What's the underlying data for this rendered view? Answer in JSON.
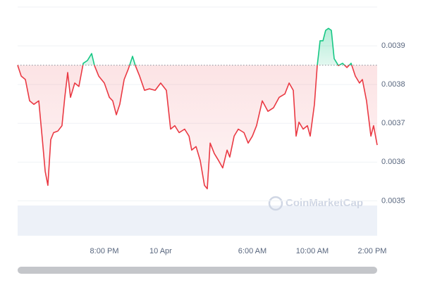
{
  "chart_data": {
    "type": "line",
    "watermark": "CoinMarketCap",
    "x": [
      0,
      0.24,
      0.52,
      0.8,
      1.08,
      1.41,
      1.65,
      1.84,
      2.02,
      2.21,
      2.4,
      2.68,
      2.96,
      3.15,
      3.34,
      3.53,
      3.81,
      4.09,
      4.38,
      4.66,
      4.94,
      5.13,
      5.41,
      5.79,
      6.12,
      6.35,
      6.59,
      6.82,
      7.11,
      7.39,
      7.67,
      7.86,
      8.14,
      8.47,
      8.8,
      9.18,
      9.55,
      9.93,
      10.21,
      10.49,
      10.78,
      11.15,
      11.44,
      11.62,
      11.91,
      12.19,
      12.47,
      12.66,
      12.85,
      13.13,
      13.41,
      13.69,
      13.98,
      14.16,
      14.45,
      14.73,
      15.11,
      15.39,
      15.67,
      15.95,
      16.33,
      16.71,
      17.08,
      17.46,
      17.84,
      18.12,
      18.4,
      18.59,
      18.78,
      19.06,
      19.34,
      19.53,
      19.81,
      20,
      20.19,
      20.38,
      20.56,
      20.75,
      20.94,
      21.13,
      21.41,
      21.69,
      21.98,
      22.26,
      22.54,
      22.82,
      23.01,
      23.29,
      23.58,
      23.76,
      24
    ],
    "series": [
      {
        "values": [
          0.00385,
          0.003822,
          0.003813,
          0.003758,
          0.003749,
          0.003758,
          0.003658,
          0.003576,
          0.00354,
          0.003658,
          0.003676,
          0.00368,
          0.003694,
          0.003767,
          0.003831,
          0.003767,
          0.003804,
          0.003795,
          0.003855,
          0.003862,
          0.00388,
          0.003849,
          0.003822,
          0.003804,
          0.003767,
          0.003758,
          0.003722,
          0.003749,
          0.003813,
          0.00384,
          0.003873,
          0.003849,
          0.003822,
          0.003785,
          0.003789,
          0.003785,
          0.003804,
          0.003785,
          0.003685,
          0.003694,
          0.003676,
          0.003685,
          0.003667,
          0.003631,
          0.00364,
          0.003604,
          0.00354,
          0.003531,
          0.003649,
          0.003622,
          0.003604,
          0.003585,
          0.003631,
          0.003613,
          0.003667,
          0.003685,
          0.003676,
          0.003649,
          0.003667,
          0.003694,
          0.003758,
          0.003731,
          0.00374,
          0.003767,
          0.003776,
          0.003804,
          0.003785,
          0.003667,
          0.003703,
          0.003685,
          0.003694,
          0.003667,
          0.003749,
          0.003849,
          0.003913,
          0.003913,
          0.00394,
          0.003945,
          0.00394,
          0.003867,
          0.003849,
          0.003855,
          0.003844,
          0.003855,
          0.003822,
          0.003804,
          0.003813,
          0.003758,
          0.003667,
          0.003694,
          0.003644
        ]
      }
    ],
    "baseline": 0.00385,
    "up_color": "#16c784",
    "down_color": "#ea3943",
    "xlim": [
      0,
      24
    ],
    "xticks": [
      {
        "value": 5.79,
        "label": "8:00 PM"
      },
      {
        "value": 9.55,
        "label": "10 Apr"
      },
      {
        "value": 15.67,
        "label": "6:00 AM"
      },
      {
        "value": 19.67,
        "label": "10:00 AM"
      },
      {
        "value": 23.67,
        "label": "2:00 PM"
      }
    ],
    "ylim": [
      0.00341,
      0.004
    ],
    "yticks": [
      0.0035,
      0.0036,
      0.0037,
      0.0038,
      0.0039
    ],
    "grid": true
  }
}
